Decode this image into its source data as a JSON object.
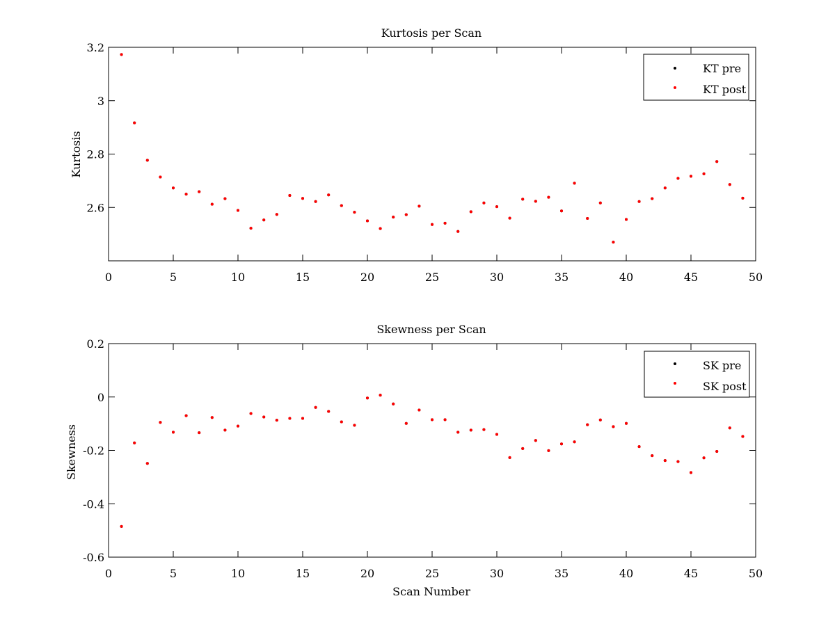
{
  "chart_data": [
    {
      "type": "scatter",
      "title": "Kurtosis per Scan",
      "xlabel": "",
      "ylabel": "Kurtosis",
      "xlim": [
        0,
        50
      ],
      "ylim": [
        2.4,
        3.2
      ],
      "xticks": [
        0,
        5,
        10,
        15,
        20,
        25,
        30,
        35,
        40,
        45,
        50
      ],
      "yticks": [
        2.6,
        2.8,
        3,
        3.2
      ],
      "xtick_labels": [
        "0",
        "5",
        "10",
        "15",
        "20",
        "25",
        "30",
        "35",
        "40",
        "45",
        "50"
      ],
      "ytick_labels": [
        "2.6",
        "2.8",
        "3",
        "3.2"
      ],
      "grid": false,
      "legend_position": "top-right",
      "series": [
        {
          "name": "KT pre",
          "color": "#000000",
          "x": [
            1,
            2,
            3,
            4,
            5,
            6,
            7,
            8,
            9,
            10,
            11,
            12,
            13,
            14,
            15,
            16,
            17,
            18,
            19,
            20,
            21,
            22,
            23,
            24,
            25,
            26,
            27,
            28,
            29,
            30,
            31,
            32,
            33,
            34,
            35,
            36,
            37,
            38,
            39,
            40,
            41,
            42,
            43,
            44,
            45,
            46,
            47,
            48,
            49
          ],
          "y": [
            3.173,
            2.917,
            2.777,
            2.714,
            2.673,
            2.65,
            2.659,
            2.612,
            2.633,
            2.589,
            2.522,
            2.553,
            2.574,
            2.645,
            2.634,
            2.622,
            2.647,
            2.607,
            2.582,
            2.55,
            2.521,
            2.564,
            2.573,
            2.605,
            2.536,
            2.541,
            2.51,
            2.584,
            2.617,
            2.603,
            2.56,
            2.631,
            2.623,
            2.638,
            2.587,
            2.691,
            2.559,
            2.617,
            2.47,
            2.555,
            2.622,
            2.633,
            2.673,
            2.709,
            2.717,
            2.726,
            2.772,
            2.686,
            2.635
          ]
        },
        {
          "name": "KT post",
          "color": "#ff0000",
          "x": [
            1,
            2,
            3,
            4,
            5,
            6,
            7,
            8,
            9,
            10,
            11,
            12,
            13,
            14,
            15,
            16,
            17,
            18,
            19,
            20,
            21,
            22,
            23,
            24,
            25,
            26,
            27,
            28,
            29,
            30,
            31,
            32,
            33,
            34,
            35,
            36,
            37,
            38,
            39,
            40,
            41,
            42,
            43,
            44,
            45,
            46,
            47,
            48,
            49
          ],
          "y": [
            3.173,
            2.917,
            2.777,
            2.714,
            2.673,
            2.65,
            2.659,
            2.612,
            2.633,
            2.589,
            2.522,
            2.553,
            2.574,
            2.645,
            2.634,
            2.622,
            2.647,
            2.607,
            2.582,
            2.55,
            2.521,
            2.564,
            2.573,
            2.605,
            2.536,
            2.541,
            2.51,
            2.584,
            2.617,
            2.603,
            2.56,
            2.631,
            2.623,
            2.638,
            2.587,
            2.691,
            2.559,
            2.617,
            2.47,
            2.555,
            2.622,
            2.633,
            2.673,
            2.709,
            2.717,
            2.726,
            2.772,
            2.686,
            2.635
          ]
        }
      ]
    },
    {
      "type": "scatter",
      "title": "Skewness per Scan",
      "xlabel": "Scan Number",
      "ylabel": "Skewness",
      "xlim": [
        0,
        50
      ],
      "ylim": [
        -0.6,
        0.2
      ],
      "xticks": [
        0,
        5,
        10,
        15,
        20,
        25,
        30,
        35,
        40,
        45,
        50
      ],
      "yticks": [
        -0.6,
        -0.4,
        -0.2,
        0,
        0.2
      ],
      "xtick_labels": [
        "0",
        "5",
        "10",
        "15",
        "20",
        "25",
        "30",
        "35",
        "40",
        "45",
        "50"
      ],
      "ytick_labels": [
        "-0.6",
        "-0.4",
        "-0.2",
        "0",
        "0.2"
      ],
      "grid": false,
      "legend_position": "top-right",
      "series": [
        {
          "name": "SK pre",
          "color": "#000000",
          "x": [
            1,
            2,
            3,
            4,
            5,
            6,
            7,
            8,
            9,
            10,
            11,
            12,
            13,
            14,
            15,
            16,
            17,
            18,
            19,
            20,
            21,
            22,
            23,
            24,
            25,
            26,
            27,
            28,
            29,
            30,
            31,
            32,
            33,
            34,
            35,
            36,
            37,
            38,
            39,
            40,
            41,
            42,
            43,
            44,
            45,
            46,
            47,
            48,
            49
          ],
          "y": [
            -0.485,
            -0.172,
            -0.249,
            -0.095,
            -0.132,
            -0.07,
            -0.134,
            -0.077,
            -0.124,
            -0.109,
            -0.062,
            -0.075,
            -0.087,
            -0.08,
            -0.08,
            -0.039,
            -0.054,
            -0.093,
            -0.106,
            -0.004,
            0.007,
            -0.026,
            -0.099,
            -0.049,
            -0.085,
            -0.085,
            -0.132,
            -0.124,
            -0.122,
            -0.14,
            -0.227,
            -0.193,
            -0.163,
            -0.201,
            -0.176,
            -0.168,
            -0.104,
            -0.086,
            -0.111,
            -0.099,
            -0.186,
            -0.22,
            -0.238,
            -0.242,
            -0.283,
            -0.228,
            -0.204,
            -0.116,
            -0.148
          ]
        },
        {
          "name": "SK post",
          "color": "#ff0000",
          "x": [
            1,
            2,
            3,
            4,
            5,
            6,
            7,
            8,
            9,
            10,
            11,
            12,
            13,
            14,
            15,
            16,
            17,
            18,
            19,
            20,
            21,
            22,
            23,
            24,
            25,
            26,
            27,
            28,
            29,
            30,
            31,
            32,
            33,
            34,
            35,
            36,
            37,
            38,
            39,
            40,
            41,
            42,
            43,
            44,
            45,
            46,
            47,
            48,
            49
          ],
          "y": [
            -0.485,
            -0.172,
            -0.249,
            -0.095,
            -0.132,
            -0.07,
            -0.134,
            -0.077,
            -0.124,
            -0.109,
            -0.062,
            -0.075,
            -0.087,
            -0.08,
            -0.08,
            -0.039,
            -0.054,
            -0.093,
            -0.106,
            -0.004,
            0.007,
            -0.026,
            -0.099,
            -0.049,
            -0.085,
            -0.085,
            -0.132,
            -0.124,
            -0.122,
            -0.14,
            -0.227,
            -0.193,
            -0.163,
            -0.201,
            -0.176,
            -0.168,
            -0.104,
            -0.086,
            -0.111,
            -0.099,
            -0.186,
            -0.22,
            -0.238,
            -0.242,
            -0.283,
            -0.228,
            -0.204,
            -0.116,
            -0.148
          ]
        }
      ]
    }
  ]
}
